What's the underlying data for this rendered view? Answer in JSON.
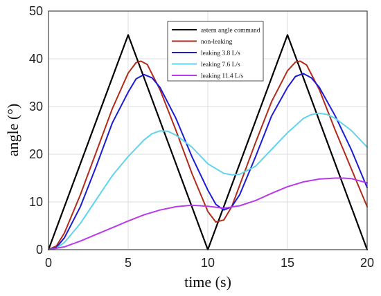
{
  "chart_data": {
    "type": "line",
    "title": "",
    "xlabel": "time (s)",
    "ylabel": "angle (°)",
    "xlim": [
      0,
      20
    ],
    "ylim": [
      0,
      50
    ],
    "xticks": [
      0,
      5,
      10,
      15,
      20
    ],
    "yticks": [
      0,
      10,
      20,
      30,
      40,
      50
    ],
    "grid": true,
    "legend_position": "top-right",
    "series": [
      {
        "name": "astern angle command",
        "color": "#000000",
        "x": [
          0,
          5,
          10,
          15,
          20
        ],
        "y": [
          0,
          45,
          0,
          45,
          0
        ]
      },
      {
        "name": "non-leaking",
        "color": "#b22a1a",
        "x": [
          0,
          0.5,
          1,
          2,
          3,
          4,
          5,
          5.5,
          5.8,
          6.2,
          7,
          8,
          9,
          10,
          10.5,
          11,
          11.5,
          12,
          13,
          14,
          15,
          15.5,
          15.8,
          16.2,
          17,
          18,
          19,
          20
        ],
        "y": [
          0,
          0.8,
          3.5,
          11.5,
          20.5,
          29.5,
          37,
          39.2,
          39.5,
          38.8,
          33.5,
          25,
          16,
          8,
          5.8,
          6.2,
          9,
          13.5,
          22.5,
          31,
          37.5,
          39.3,
          39.5,
          38.7,
          33.5,
          25,
          17,
          9
        ]
      },
      {
        "name": "leaking 3.8 L/s",
        "color": "#1b1bd6",
        "x": [
          0,
          0.5,
          1,
          2,
          3,
          4,
          5,
          5.5,
          6,
          6.5,
          7,
          8,
          9,
          10,
          10.5,
          11,
          11.5,
          12,
          13,
          14,
          15,
          15.5,
          16,
          16.5,
          17,
          18,
          19,
          20
        ],
        "y": [
          0,
          0.5,
          2.5,
          9,
          17.5,
          26.5,
          33,
          35.8,
          36.7,
          36,
          34,
          27.5,
          19.5,
          12.5,
          9.5,
          8.3,
          9,
          11.5,
          19.5,
          28,
          34,
          36.3,
          36.9,
          36,
          34,
          28,
          21,
          13
        ]
      },
      {
        "name": "leaking 7.6 L/s",
        "color": "#5fd4ec",
        "x": [
          0,
          0.5,
          1,
          2,
          3,
          4,
          5,
          6,
          6.5,
          7,
          7.5,
          8,
          9,
          10,
          11,
          11.5,
          12,
          13,
          14,
          15,
          16,
          16.5,
          17,
          17.5,
          18,
          19,
          20
        ],
        "y": [
          0,
          0.3,
          1.5,
          5.5,
          10.5,
          15.5,
          19.5,
          23,
          24.3,
          24.9,
          24.8,
          24,
          21.5,
          18,
          16,
          15.7,
          15.8,
          17.5,
          21,
          24.5,
          27.5,
          28.3,
          28.6,
          28.3,
          27.5,
          25,
          21.5
        ]
      },
      {
        "name": "leaking 11.4 L/s",
        "color": "#b93ae8",
        "x": [
          0,
          1,
          2,
          3,
          4,
          5,
          6,
          7,
          8,
          9,
          10,
          11,
          12,
          13,
          14,
          15,
          16,
          17,
          18,
          18.5,
          19,
          20
        ],
        "y": [
          0,
          0.6,
          1.8,
          3.2,
          4.6,
          6,
          7.3,
          8.3,
          9,
          9.3,
          9.1,
          8.7,
          9.2,
          10.3,
          11.8,
          13.2,
          14.2,
          14.8,
          15,
          15,
          14.9,
          14
        ]
      }
    ]
  }
}
